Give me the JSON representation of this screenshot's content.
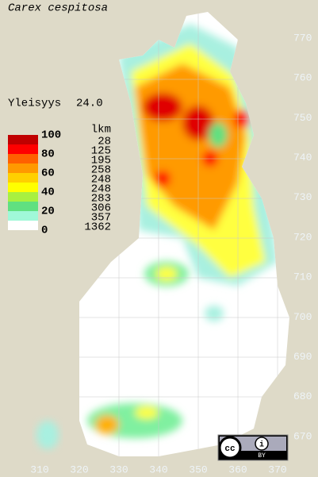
{
  "title": "Carex cespitosa",
  "frequency": {
    "label": "Yleisyys",
    "value": "24.0"
  },
  "legend": {
    "levels": [
      100,
      80,
      60,
      40,
      20,
      0
    ],
    "count_header": "lkm",
    "counts": [
      28,
      125,
      195,
      258,
      248,
      248,
      283,
      306,
      357,
      1362
    ]
  },
  "y_axis": [
    770,
    760,
    750,
    740,
    730,
    720,
    710,
    700,
    690,
    680,
    670
  ],
  "x_axis": [
    310,
    320,
    330,
    340,
    350,
    360,
    370
  ],
  "license": "BY"
}
